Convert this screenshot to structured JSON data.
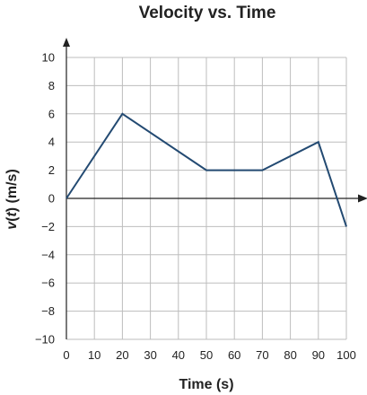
{
  "chart_data": {
    "type": "line",
    "title": "Velocity vs. Time",
    "xlabel": "Time (s)",
    "ylabel_prefix": "v",
    "ylabel_italic": "t",
    "ylabel_suffix": " (m/s)",
    "xlim": [
      0,
      100
    ],
    "ylim": [
      -10,
      10
    ],
    "x_ticks": [
      0,
      10,
      20,
      30,
      40,
      50,
      60,
      70,
      80,
      90,
      100
    ],
    "x_tick_labels": [
      "0",
      "10",
      "20",
      "30",
      "40",
      "50",
      "60",
      "70",
      "80",
      "90",
      "100"
    ],
    "y_ticks": [
      10,
      8,
      6,
      4,
      2,
      0,
      -2,
      -4,
      -6,
      -8,
      -10
    ],
    "y_tick_labels": [
      "10",
      "8",
      "6",
      "4",
      "2",
      "0",
      "−2",
      "−4",
      "−6",
      "−8",
      "−10"
    ],
    "grid": true,
    "series": [
      {
        "color": "#234a72",
        "x": [
          0,
          20,
          50,
          70,
          90,
          100
        ],
        "y": [
          0,
          6,
          2,
          2,
          4,
          -2
        ]
      }
    ]
  }
}
